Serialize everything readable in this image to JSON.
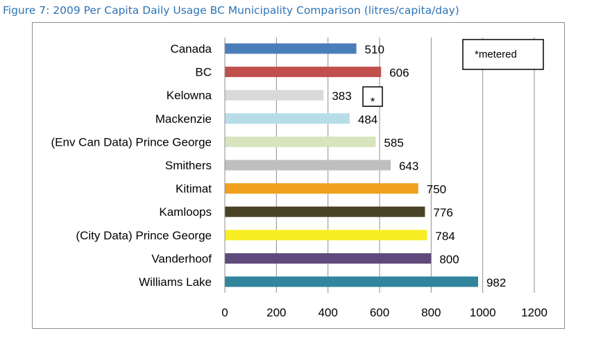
{
  "figure_title": "Figure 7: 2009 Per Capita Daily Usage BC Municipality Comparison (litres/capita/day)",
  "legend_note": "*metered",
  "metered_marker": "*",
  "chart_data": {
    "type": "bar",
    "orientation": "horizontal",
    "title": "",
    "xlabel": "",
    "ylabel": "",
    "xlim": [
      0,
      1200
    ],
    "ticks": [
      0,
      200,
      400,
      600,
      800,
      1000,
      1200
    ],
    "grid": "vertical",
    "categories": [
      "Canada",
      "BC",
      "Kelowna",
      "Mackenzie",
      "(Env Can Data) Prince George",
      "Smithers",
      "Kitimat",
      "Kamloops",
      "(City Data) Prince George",
      "Vanderhoof",
      "Williams Lake"
    ],
    "values": [
      510,
      606,
      383,
      484,
      585,
      643,
      750,
      776,
      784,
      800,
      982
    ],
    "colors": [
      "#4a7ebb",
      "#c0504d",
      "#d9d9d9",
      "#b7dde8",
      "#d7e4bd",
      "#bfbfbf",
      "#f0a01e",
      "#4a4226",
      "#f7ef23",
      "#5f4a7b",
      "#31859c"
    ],
    "metered": [
      "Kelowna"
    ]
  }
}
